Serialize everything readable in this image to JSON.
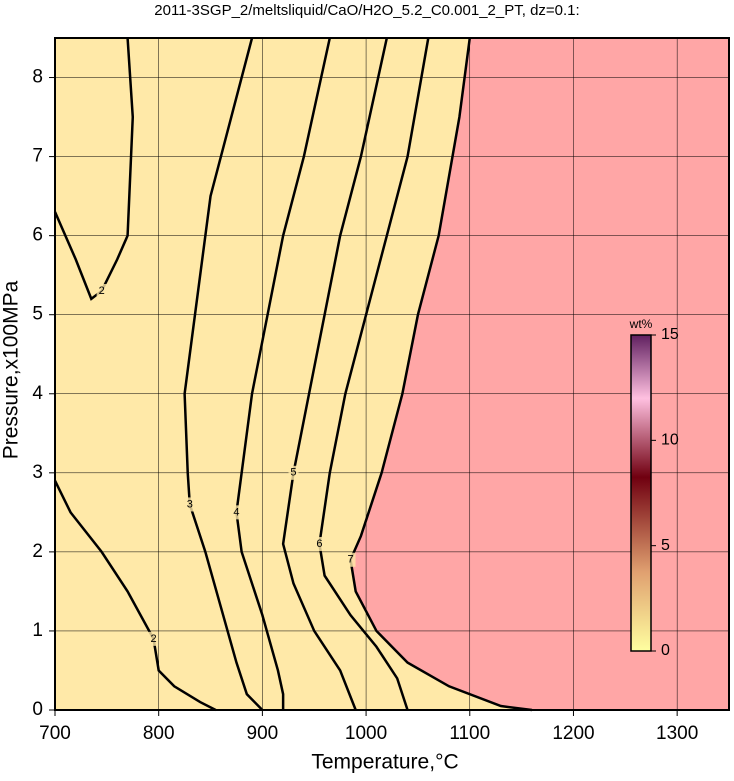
{
  "chart_data": {
    "type": "contour",
    "title": "2011-3SGP_2/meltsliquid/CaO/H2O_5.2_C0.001_2_PT, dz=0.1:",
    "x_label": "Temperature,°C",
    "y_label": "Pressure,x100MPa",
    "xlim": [
      700,
      1350
    ],
    "xticks": [
      700,
      800,
      900,
      1000,
      1100,
      1200,
      1300
    ],
    "ylim": [
      0,
      8.5
    ],
    "yticks": [
      0,
      1,
      2,
      3,
      4,
      5,
      6,
      7,
      8
    ],
    "grid": true,
    "background_color": "#ffe9a8",
    "filled_region": {
      "color": "#ffa6a6",
      "x": [
        1100,
        1090,
        1070,
        1050,
        1035,
        1015,
        995,
        985,
        990,
        1010,
        1040,
        1080,
        1130,
        1160,
        1350,
        1350
      ],
      "y": [
        8.5,
        7.5,
        6,
        5,
        4,
        3,
        2.2,
        1.9,
        1.5,
        1.0,
        0.6,
        0.3,
        0.05,
        0,
        0,
        8.5
      ]
    },
    "contours": [
      {
        "name": "2",
        "x": [
          770,
          775,
          770,
          760,
          745,
          735,
          720,
          700
        ],
        "y": [
          8.5,
          7.5,
          6,
          5.7,
          5.3,
          5.2,
          5.7,
          6.3
        ]
      },
      {
        "name": "2",
        "x": [
          700,
          715,
          745,
          770,
          795,
          800,
          815,
          840,
          855
        ],
        "y": [
          2.9,
          2.5,
          2.0,
          1.5,
          0.9,
          0.5,
          0.3,
          0.1,
          0
        ]
      },
      {
        "name": "3",
        "x": [
          890,
          870,
          850,
          835,
          825,
          828,
          830,
          845,
          860,
          875,
          885,
          900
        ],
        "y": [
          8.5,
          7.5,
          6.5,
          5,
          4,
          3,
          2.6,
          2.0,
          1.3,
          0.6,
          0.2,
          0
        ]
      },
      {
        "name": "4",
        "x": [
          965,
          940,
          920,
          905,
          890,
          880,
          875,
          880,
          900,
          915,
          920,
          920
        ],
        "y": [
          8.5,
          7,
          6,
          5,
          4,
          3,
          2.5,
          2.0,
          1.2,
          0.5,
          0.2,
          0
        ]
      },
      {
        "name": "5",
        "x": [
          1020,
          995,
          975,
          960,
          945,
          930,
          920,
          930,
          950,
          975,
          990
        ],
        "y": [
          8.5,
          7,
          6,
          5,
          4,
          3,
          2.1,
          1.6,
          1.0,
          0.5,
          0
        ]
      },
      {
        "name": "6",
        "x": [
          1060,
          1040,
          1020,
          1000,
          980,
          965,
          955,
          960,
          985,
          1010,
          1030,
          1040
        ],
        "y": [
          8.5,
          7,
          6,
          5,
          4,
          3,
          2.1,
          1.7,
          1.2,
          0.8,
          0.4,
          0
        ]
      },
      {
        "name": "7",
        "x": [
          1100,
          1090,
          1070,
          1050,
          1035,
          1015,
          995,
          985,
          990,
          1010,
          1040,
          1080,
          1130,
          1160
        ],
        "y": [
          8.5,
          7.5,
          6,
          5,
          4,
          3,
          2.2,
          1.9,
          1.5,
          1.0,
          0.6,
          0.3,
          0.05,
          0
        ]
      }
    ],
    "colorbar": {
      "label": "wt%",
      "lim": [
        0,
        15
      ],
      "ticks": [
        0,
        5,
        10,
        15
      ]
    }
  }
}
